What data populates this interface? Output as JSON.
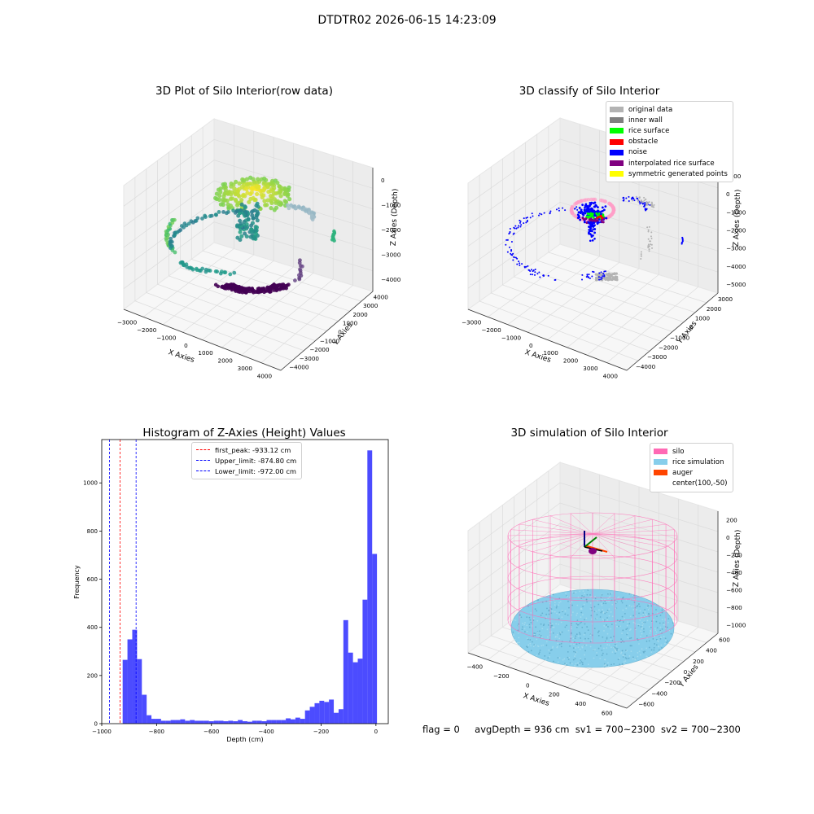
{
  "figure_title": "DTDTR02 2026-06-15 14:23:09",
  "status": {
    "flag": "flag = 0",
    "avg_depth": "avgDepth = 936 cm",
    "sv1": "sv1 = 700~2300",
    "sv2": "sv2 = 700~2300"
  },
  "chart_data": [
    {
      "type": "scatter",
      "title": "3D Plot of Silo Interior(row data)",
      "xlabel": "X Axies",
      "ylabel": "Y Axies",
      "zlabel": "Z Axies (Depth)",
      "x_ticks": [
        "−3000",
        "−2000",
        "−1000",
        "0",
        "1000",
        "2000",
        "3000",
        "4000"
      ],
      "y_ticks": [
        "4000",
        "3000",
        "2000",
        "1000",
        "0",
        "−1000",
        "−2000",
        "−3000",
        "−4000"
      ],
      "z_ticks": [
        "0",
        "−1000",
        "−2000",
        "−3000",
        "−4000"
      ],
      "colormap": "viridis",
      "colors": {
        "low": "#440154",
        "mid": "#21918c",
        "high": "#fde725",
        "sky": "#8fb3c2"
      }
    },
    {
      "type": "scatter",
      "title": "3D classify of Silo Interior",
      "xlabel": "X Axies",
      "ylabel": "Y Axies",
      "zlabel": "Z Axies (Depth)",
      "x_ticks": [
        "−3000",
        "−2000",
        "−1000",
        "0",
        "1000",
        "2000",
        "3000",
        "4000"
      ],
      "y_ticks": [
        "3000",
        "2000",
        "1000",
        "0",
        "−1000",
        "−2000",
        "−3000",
        "−4000"
      ],
      "z_ticks": [
        "1000",
        "0",
        "−1000",
        "−2000",
        "−3000",
        "−4000",
        "−5000"
      ],
      "legend": [
        {
          "label": "original data",
          "color": "#b3b3b3"
        },
        {
          "label": "inner wall",
          "color": "#808080"
        },
        {
          "label": "rice surface",
          "color": "#00ff00"
        },
        {
          "label": "obstacle",
          "color": "#ff0000"
        },
        {
          "label": "noise",
          "color": "#0000ff"
        },
        {
          "label": "interpolated rice surface",
          "color": "#800080"
        },
        {
          "label": "symmetric generated points",
          "color": "#ffff00"
        }
      ]
    },
    {
      "type": "bar",
      "title": "Histogram of Z-Axies (Height) Values",
      "xlabel": "Depth (cm)",
      "ylabel": "Frequency",
      "xlim": [
        -1000,
        45
      ],
      "ylim": [
        0,
        1180
      ],
      "x_ticks": [
        -1000,
        -800,
        -600,
        -400,
        -200,
        0
      ],
      "y_ticks": [
        0,
        200,
        400,
        600,
        800,
        1000
      ],
      "bar_color": "#0000ff",
      "bin_width": 17.5,
      "bins": [
        {
          "x": -975,
          "value": 265
        },
        {
          "x": -957.5,
          "value": 350
        },
        {
          "x": -940,
          "value": 390
        },
        {
          "x": -922.5,
          "value": 268
        },
        {
          "x": -905,
          "value": 120
        },
        {
          "x": -887.5,
          "value": 35
        },
        {
          "x": -870,
          "value": 20
        },
        {
          "x": -852.5,
          "value": 20
        },
        {
          "x": -835,
          "value": 12
        },
        {
          "x": -817.5,
          "value": 12
        },
        {
          "x": -800,
          "value": 15
        },
        {
          "x": -782.5,
          "value": 15
        },
        {
          "x": -765,
          "value": 18
        },
        {
          "x": -747.5,
          "value": 12
        },
        {
          "x": -730,
          "value": 15
        },
        {
          "x": -712.5,
          "value": 12
        },
        {
          "x": -695,
          "value": 12
        },
        {
          "x": -677.5,
          "value": 12
        },
        {
          "x": -660,
          "value": 10
        },
        {
          "x": -642.5,
          "value": 12
        },
        {
          "x": -625,
          "value": 12
        },
        {
          "x": -607.5,
          "value": 10
        },
        {
          "x": -590,
          "value": 12
        },
        {
          "x": -572.5,
          "value": 10
        },
        {
          "x": -555,
          "value": 15
        },
        {
          "x": -537.5,
          "value": 10
        },
        {
          "x": -520,
          "value": 8
        },
        {
          "x": -502.5,
          "value": 12
        },
        {
          "x": -485,
          "value": 12
        },
        {
          "x": -467.5,
          "value": 10
        },
        {
          "x": -450,
          "value": 15
        },
        {
          "x": -432.5,
          "value": 15
        },
        {
          "x": -415,
          "value": 15
        },
        {
          "x": -397.5,
          "value": 15
        },
        {
          "x": -380,
          "value": 22
        },
        {
          "x": -362.5,
          "value": 18
        },
        {
          "x": -345,
          "value": 25
        },
        {
          "x": -327.5,
          "value": 20
        },
        {
          "x": -310,
          "value": 55
        },
        {
          "x": -292.5,
          "value": 70
        },
        {
          "x": -275,
          "value": 85
        },
        {
          "x": -257.5,
          "value": 95
        },
        {
          "x": -240,
          "value": 90
        },
        {
          "x": -222.5,
          "value": 100
        },
        {
          "x": -205,
          "value": 45
        },
        {
          "x": -187.5,
          "value": 60
        },
        {
          "x": -170,
          "value": 430
        },
        {
          "x": -152.5,
          "value": 295
        },
        {
          "x": -135,
          "value": 255
        },
        {
          "x": -117.5,
          "value": 270
        },
        {
          "x": -100,
          "value": 515
        },
        {
          "x": -82.5,
          "value": 1135
        },
        {
          "x": -65,
          "value": 705
        }
      ],
      "bin_offset": 60,
      "vlines": [
        {
          "label": "first_peak: -933.12 cm",
          "x": -933.12,
          "color": "#ff0000"
        },
        {
          "label": "Upper_limit: -874.80 cm",
          "x": -874.8,
          "color": "#0000ff"
        },
        {
          "label": "Lower_limit: -972.00 cm",
          "x": -972.0,
          "color": "#0000ff"
        }
      ]
    },
    {
      "type": "scatter",
      "title": "3D simulation of Silo Interior",
      "xlabel": "X Axies",
      "ylabel": "Y Axies",
      "zlabel": "Z Axies (Depth)",
      "x_ticks": [
        "−400",
        "−200",
        "0",
        "200",
        "400",
        "600"
      ],
      "y_ticks": [
        "600",
        "400",
        "200",
        "0",
        "−200",
        "−400",
        "−600"
      ],
      "z_ticks": [
        "200",
        "0",
        "−200",
        "−400",
        "−600",
        "−800",
        "−1000"
      ],
      "legend": [
        {
          "label": "silo",
          "color": "#ff69b4"
        },
        {
          "label": "rice simulation",
          "color": "#87ceeb"
        },
        {
          "label": "auger",
          "color": "#ff4500"
        },
        {
          "label": "center(100,-50)",
          "color": ""
        }
      ]
    }
  ]
}
